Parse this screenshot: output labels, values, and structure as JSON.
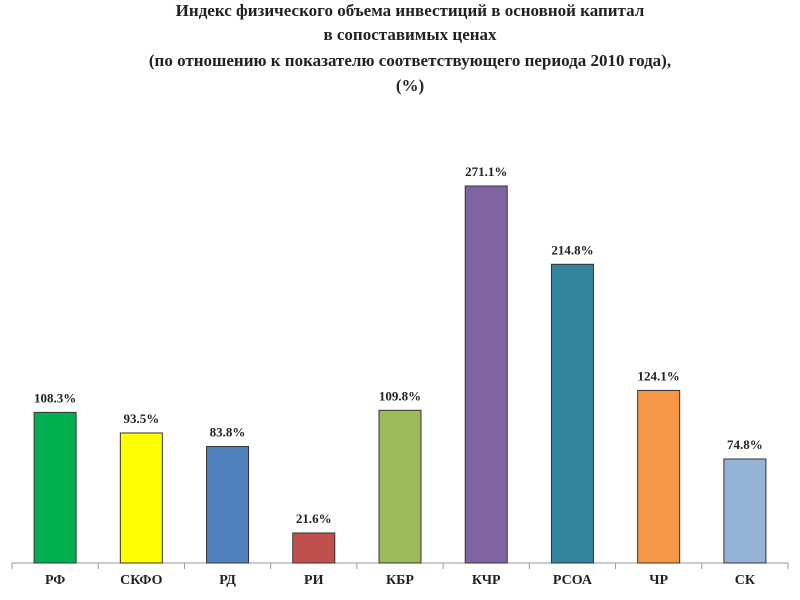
{
  "chart_data": {
    "type": "bar",
    "title": [
      "Индекс физического объема инвестиций в основной капитал",
      "в сопоставимых ценах",
      "(по отношению к показателю соответствующего периода 2010 года),",
      "(%)"
    ],
    "categories": [
      "РФ",
      "СКФО",
      "РД",
      "РИ",
      "КБР",
      "КЧР",
      "РСОА",
      "ЧР",
      "СК"
    ],
    "values": [
      108.3,
      93.5,
      83.8,
      21.6,
      109.8,
      271.1,
      214.8,
      124.1,
      74.8
    ],
    "value_labels": [
      "108.3%",
      "93.5%",
      "83.8%",
      "21.6%",
      "109.8%",
      "271.1%",
      "214.8%",
      "124.1%",
      "74.8%"
    ],
    "colors": [
      "#00b050",
      "#ffff00",
      "#4f81bd",
      "#c0504d",
      "#9bbb59",
      "#8064a2",
      "#31849b",
      "#f79646",
      "#95b3d7"
    ]
  }
}
